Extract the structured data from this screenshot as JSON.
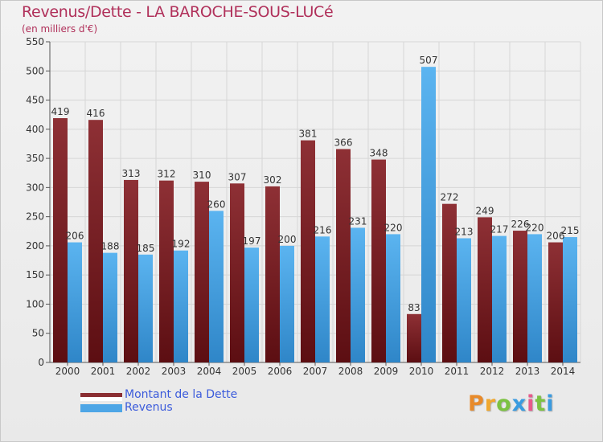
{
  "title": "Revenus/Dette - LA BAROCHE-SOUS-LUCé",
  "subtitle": "(en milliers d'€)",
  "brand": "Proxiti",
  "legend": {
    "dette": "Montant de la Dette",
    "revenus": "Revenus"
  },
  "colors": {
    "dette": "#7a2428",
    "revenus": "#4ea6e6",
    "title": "#b0305a",
    "legend_text": "#3b5bdb"
  },
  "chart_data": {
    "type": "bar",
    "title": "Revenus/Dette - LA BAROCHE-SOUS-LUCé",
    "ylabel": "(en milliers d'€)",
    "xlabel": "",
    "ylim": [
      0,
      550
    ],
    "yticks": [
      0,
      50,
      100,
      150,
      200,
      250,
      300,
      350,
      400,
      450,
      500,
      550
    ],
    "grid": true,
    "categories": [
      "2000",
      "2001",
      "2002",
      "2003",
      "2004",
      "2005",
      "2006",
      "2007",
      "2008",
      "2009",
      "2010",
      "2011",
      "2012",
      "2013",
      "2014"
    ],
    "series": [
      {
        "name": "Montant de la Dette",
        "values": [
          419,
          416,
          313,
          312,
          310,
          307,
          302,
          381,
          366,
          348,
          83,
          272,
          249,
          226,
          206
        ]
      },
      {
        "name": "Revenus",
        "values": [
          206,
          188,
          185,
          192,
          260,
          197,
          200,
          216,
          231,
          220,
          507,
          213,
          217,
          220,
          215
        ]
      }
    ]
  }
}
